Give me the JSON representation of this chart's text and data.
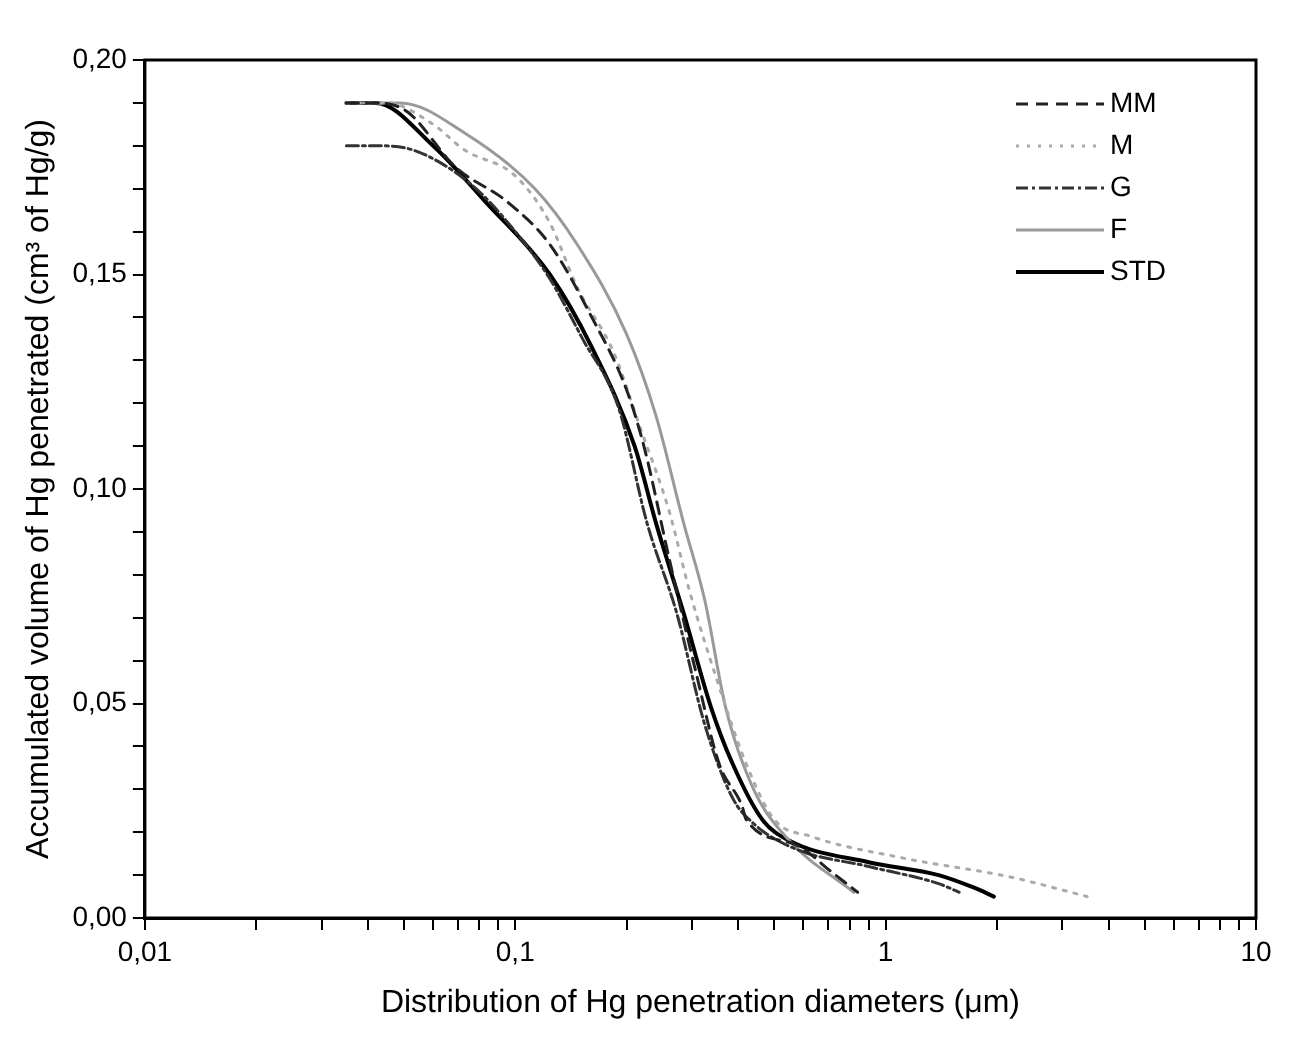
{
  "chart_data": {
    "type": "line",
    "xlabel": "Distribution of Hg penetration diameters (μm)",
    "ylabel": "Accumulated volume of Hg penetrated (cm³ of Hg/g)",
    "log": "x",
    "xlim": [
      0.01,
      10
    ],
    "ylim": [
      0,
      0.2
    ],
    "xticks": [
      {
        "value": 0.01,
        "label": "0,01"
      },
      {
        "value": 0.02,
        "label": null
      },
      {
        "value": 0.03,
        "label": null
      },
      {
        "value": 0.04,
        "label": null
      },
      {
        "value": 0.05,
        "label": null
      },
      {
        "value": 0.06,
        "label": null
      },
      {
        "value": 0.07,
        "label": null
      },
      {
        "value": 0.08,
        "label": null
      },
      {
        "value": 0.09,
        "label": null
      },
      {
        "value": 0.1,
        "label": "0,1"
      },
      {
        "value": 0.2,
        "label": null
      },
      {
        "value": 0.3,
        "label": null
      },
      {
        "value": 0.4,
        "label": null
      },
      {
        "value": 0.5,
        "label": null
      },
      {
        "value": 0.6,
        "label": null
      },
      {
        "value": 0.7,
        "label": null
      },
      {
        "value": 0.8,
        "label": null
      },
      {
        "value": 0.9,
        "label": null
      },
      {
        "value": 1,
        "label": "1"
      },
      {
        "value": 2,
        "label": null
      },
      {
        "value": 3,
        "label": null
      },
      {
        "value": 4,
        "label": null
      },
      {
        "value": 5,
        "label": null
      },
      {
        "value": 6,
        "label": null
      },
      {
        "value": 7,
        "label": null
      },
      {
        "value": 8,
        "label": null
      },
      {
        "value": 9,
        "label": null
      },
      {
        "value": 10,
        "label": "10"
      }
    ],
    "yticks": [
      {
        "value": 0,
        "label": "0,00"
      },
      {
        "value": 0.01,
        "label": null
      },
      {
        "value": 0.02,
        "label": null
      },
      {
        "value": 0.03,
        "label": null
      },
      {
        "value": 0.04,
        "label": null
      },
      {
        "value": 0.05,
        "label": "0,05"
      },
      {
        "value": 0.06,
        "label": null
      },
      {
        "value": 0.07,
        "label": null
      },
      {
        "value": 0.08,
        "label": null
      },
      {
        "value": 0.09,
        "label": null
      },
      {
        "value": 0.1,
        "label": "0,10"
      },
      {
        "value": 0.11,
        "label": null
      },
      {
        "value": 0.12,
        "label": null
      },
      {
        "value": 0.13,
        "label": null
      },
      {
        "value": 0.14,
        "label": null
      },
      {
        "value": 0.15,
        "label": "0,15"
      },
      {
        "value": 0.16,
        "label": null
      },
      {
        "value": 0.17,
        "label": null
      },
      {
        "value": 0.18,
        "label": null
      },
      {
        "value": 0.19,
        "label": null
      },
      {
        "value": 0.2,
        "label": "0,20"
      }
    ],
    "grid": false,
    "legend": "top right",
    "marker": "none",
    "series": [
      {
        "name": "MM",
        "color": "#222222",
        "line_style": "dashed",
        "x": [
          0.035,
          0.042,
          0.051,
          0.069,
          0.095,
          0.124,
          0.161,
          0.2,
          0.224,
          0.26,
          0.31,
          0.355,
          0.41,
          0.42,
          0.575,
          0.72,
          0.84
        ],
        "values": [
          0.19,
          0.19,
          0.188,
          0.175,
          0.167,
          0.157,
          0.14,
          0.123,
          0.109,
          0.084,
          0.056,
          0.036,
          0.026,
          0.023,
          0.017,
          0.0105,
          0.006
        ]
      },
      {
        "name": "M",
        "color": "#aaaaaa",
        "line_style": "dotted",
        "x": [
          0.035,
          0.045,
          0.06,
          0.073,
          0.1,
          0.124,
          0.147,
          0.184,
          0.218,
          0.26,
          0.296,
          0.355,
          0.42,
          0.5,
          0.63,
          1.11,
          2.16,
          3.5
        ],
        "values": [
          0.19,
          0.19,
          0.185,
          0.179,
          0.173,
          0.162,
          0.147,
          0.132,
          0.114,
          0.095,
          0.076,
          0.054,
          0.036,
          0.023,
          0.019,
          0.014,
          0.0096,
          0.005
        ]
      },
      {
        "name": "G",
        "color": "#333333",
        "line_style": "dashdot",
        "x": [
          0.035,
          0.042,
          0.053,
          0.076,
          0.1,
          0.124,
          0.152,
          0.19,
          0.227,
          0.273,
          0.325,
          0.386,
          0.44,
          0.575,
          0.9,
          1.39,
          1.58
        ],
        "values": [
          0.18,
          0.18,
          0.179,
          0.171,
          0.16,
          0.149,
          0.135,
          0.119,
          0.092,
          0.071,
          0.045,
          0.028,
          0.022,
          0.016,
          0.012,
          0.008,
          0.006
        ]
      },
      {
        "name": "F",
        "color": "#999999",
        "line_style": "solid",
        "x": [
          0.035,
          0.042,
          0.049,
          0.073,
          0.113,
          0.147,
          0.2,
          0.24,
          0.285,
          0.325,
          0.37,
          0.44,
          0.55,
          0.82
        ],
        "values": [
          0.19,
          0.19,
          0.19,
          0.183,
          0.17,
          0.157,
          0.136,
          0.117,
          0.092,
          0.074,
          0.049,
          0.03,
          0.018,
          0.006
        ]
      },
      {
        "name": "STD",
        "color": "#000000",
        "line_style": "solid",
        "x": [
          0.035,
          0.042,
          0.06,
          0.083,
          0.124,
          0.161,
          0.21,
          0.24,
          0.285,
          0.338,
          0.386,
          0.464,
          0.55,
          0.9,
          1.39,
          1.74,
          1.96
        ],
        "values": [
          0.19,
          0.19,
          0.18,
          0.167,
          0.15,
          0.133,
          0.11,
          0.092,
          0.071,
          0.049,
          0.036,
          0.023,
          0.018,
          0.013,
          0.01,
          0.007,
          0.005
        ]
      }
    ]
  }
}
